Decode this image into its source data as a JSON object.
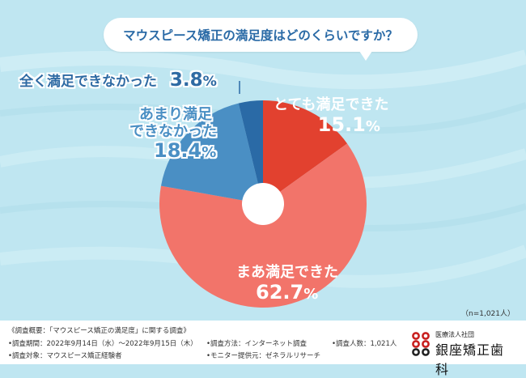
{
  "question": "マウスピース矯正の満足度はどのくらいですか？",
  "sample_note": "（n=1,021人）",
  "chart_data": {
    "type": "pie",
    "title": "マウスピース矯正の満足度はどのくらいですか？",
    "donut": true,
    "slices": [
      {
        "label": "とても満足できた",
        "value": 15.1,
        "num": "15.1",
        "unit": "%",
        "color": "#e2412f"
      },
      {
        "label": "まあ満足できた",
        "value": 62.7,
        "num": "62.7",
        "unit": "%",
        "color": "#f2746a"
      },
      {
        "label": "あまり満足できなかった",
        "line1": "あまり満足",
        "line2": "できなかった",
        "value": 18.4,
        "num": "18.4",
        "unit": "%",
        "color": "#4a8fc4"
      },
      {
        "label": "全く満足できなかった",
        "value": 3.8,
        "num": "3.8",
        "unit": "%",
        "color": "#2a6aa6"
      }
    ]
  },
  "survey": {
    "outline": "《調査概要：「マウスピース矯正の満足度」に関する調査》",
    "period": "•調査期間：2022年9月14日（水）〜2022年9月15日（木）",
    "target": "•調査対象：マウスピース矯正経験者",
    "method": "•調査方法：インターネット調査",
    "provider": "•モニター提供元：ゼネラルリサーチ",
    "count": "•調査人数：1,021人"
  },
  "logo": {
    "sub": "医療法人社団",
    "name": "銀座矯正歯科"
  }
}
